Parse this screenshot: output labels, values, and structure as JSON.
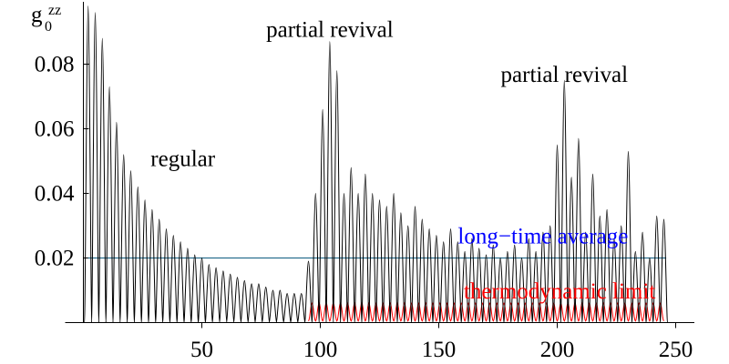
{
  "chart_data": {
    "type": "line",
    "title": "",
    "xlabel": "",
    "ylabel": {
      "base": "g",
      "sub": "0",
      "sup": "zz"
    },
    "xlim": [
      0,
      255
    ],
    "ylim": [
      0,
      0.098
    ],
    "xticks": [
      {
        "value": 50,
        "label": "50"
      },
      {
        "value": 100,
        "label": "100"
      },
      {
        "value": 150,
        "label": "150"
      },
      {
        "value": 200,
        "label": "200"
      },
      {
        "value": 250,
        "label": "250"
      }
    ],
    "yticks": [
      {
        "value": 0.02,
        "label": "0.02"
      },
      {
        "value": 0.04,
        "label": "0.04"
      },
      {
        "value": 0.06,
        "label": "0.06"
      },
      {
        "value": 0.08,
        "label": "0.08"
      }
    ],
    "grid": false,
    "series": [
      {
        "key": "g_t",
        "color": "#000000",
        "peaks": [
          [
            2,
            0.098
          ],
          [
            5,
            0.096
          ],
          [
            8,
            0.088
          ],
          [
            11,
            0.073
          ],
          [
            14,
            0.062
          ],
          [
            17,
            0.052
          ],
          [
            20,
            0.047
          ],
          [
            23,
            0.042
          ],
          [
            26,
            0.038
          ],
          [
            29,
            0.035
          ],
          [
            32,
            0.032
          ],
          [
            35,
            0.029
          ],
          [
            38,
            0.027
          ],
          [
            41,
            0.025
          ],
          [
            44,
            0.023
          ],
          [
            47,
            0.021
          ],
          [
            50,
            0.02
          ],
          [
            53,
            0.018
          ],
          [
            56,
            0.017
          ],
          [
            59,
            0.016
          ],
          [
            62,
            0.015
          ],
          [
            65,
            0.014
          ],
          [
            68,
            0.013
          ],
          [
            71,
            0.012
          ],
          [
            74,
            0.012
          ],
          [
            77,
            0.011
          ],
          [
            80,
            0.01
          ],
          [
            83,
            0.01
          ],
          [
            86,
            0.009
          ],
          [
            89,
            0.009
          ],
          [
            92,
            0.009
          ],
          [
            95,
            0.019
          ],
          [
            98,
            0.04
          ],
          [
            101,
            0.066
          ],
          [
            104,
            0.087
          ],
          [
            107,
            0.078
          ],
          [
            110,
            0.04
          ],
          [
            113,
            0.048
          ],
          [
            116,
            0.04
          ],
          [
            119,
            0.046
          ],
          [
            122,
            0.04
          ],
          [
            125,
            0.038
          ],
          [
            128,
            0.036
          ],
          [
            131,
            0.04
          ],
          [
            134,
            0.034
          ],
          [
            137,
            0.03
          ],
          [
            140,
            0.036
          ],
          [
            143,
            0.032
          ],
          [
            146,
            0.029
          ],
          [
            149,
            0.027
          ],
          [
            152,
            0.025
          ],
          [
            155,
            0.029
          ],
          [
            158,
            0.025
          ],
          [
            161,
            0.022
          ],
          [
            164,
            0.026
          ],
          [
            167,
            0.023
          ],
          [
            170,
            0.021
          ],
          [
            173,
            0.024
          ],
          [
            176,
            0.02
          ],
          [
            179,
            0.022
          ],
          [
            182,
            0.024
          ],
          [
            185,
            0.02
          ],
          [
            188,
            0.026
          ],
          [
            191,
            0.022
          ],
          [
            194,
            0.028
          ],
          [
            197,
            0.03
          ],
          [
            200,
            0.055
          ],
          [
            203,
            0.075
          ],
          [
            206,
            0.045
          ],
          [
            209,
            0.057
          ],
          [
            212,
            0.028
          ],
          [
            215,
            0.046
          ],
          [
            218,
            0.033
          ],
          [
            221,
            0.035
          ],
          [
            224,
            0.026
          ],
          [
            227,
            0.03
          ],
          [
            230,
            0.053
          ],
          [
            233,
            0.022
          ],
          [
            236,
            0.028
          ],
          [
            239,
            0.02
          ],
          [
            242,
            0.033
          ],
          [
            245,
            0.032
          ]
        ]
      },
      {
        "key": "thermodynamic",
        "color": "#ff0000",
        "x_start": 95,
        "x_end": 245,
        "period": 3,
        "min": 0.0005,
        "max": 0.006
      },
      {
        "key": "average",
        "color": "#2a6f8f",
        "value": 0.02,
        "x_start": 2,
        "x_end": 246
      }
    ],
    "annotations": [
      {
        "text": "partial revival",
        "x": 104,
        "y": 0.0885,
        "color": "#000000"
      },
      {
        "text": "partial revival",
        "x": 203,
        "y": 0.0745,
        "color": "#000000"
      },
      {
        "text": "regular",
        "x": 42,
        "y": 0.0485,
        "color": "#000000"
      },
      {
        "text": "long−time average",
        "x": 194,
        "y": 0.0245,
        "color": "#0000ff"
      },
      {
        "text": "thermodynamic  limit",
        "x": 201,
        "y": 0.0075,
        "color": "#ff0000"
      }
    ]
  }
}
